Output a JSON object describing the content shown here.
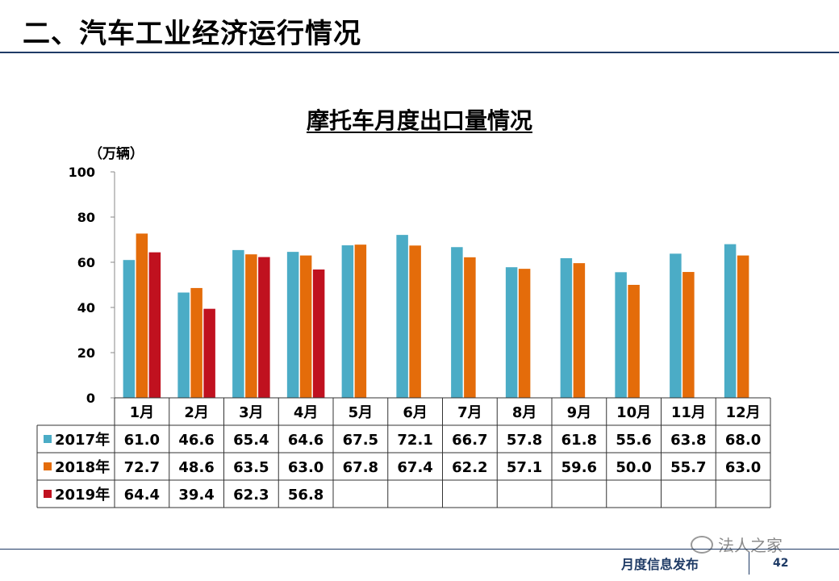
{
  "slide": {
    "title": "二、汽车工业经济运行情况",
    "footer_text": "月度信息发布",
    "page_number": "42",
    "watermark": "法人之家"
  },
  "chart_data": {
    "type": "bar",
    "title": "摩托车月度出口量情况",
    "ylabel": "（万辆）",
    "ylim": [
      0,
      100
    ],
    "yticks": [
      0,
      20,
      40,
      60,
      80,
      100
    ],
    "categories": [
      "1月",
      "2月",
      "3月",
      "4月",
      "5月",
      "6月",
      "7月",
      "8月",
      "9月",
      "10月",
      "11月",
      "12月"
    ],
    "series": [
      {
        "name": "2017年",
        "color": "#4bacc6",
        "values": [
          61.0,
          46.6,
          65.4,
          64.6,
          67.5,
          72.1,
          66.7,
          57.8,
          61.8,
          55.6,
          63.8,
          68.0
        ],
        "labels": [
          "61.0",
          "46.6",
          "65.4",
          "64.6",
          "67.5",
          "72.1",
          "66.7",
          "57.8",
          "61.8",
          "55.6",
          "63.8",
          "68.0"
        ]
      },
      {
        "name": "2018年",
        "color": "#e46c0a",
        "values": [
          72.7,
          48.6,
          63.5,
          63.0,
          67.8,
          67.4,
          62.2,
          57.1,
          59.6,
          50.0,
          55.7,
          63.0
        ],
        "labels": [
          "72.7",
          "48.6",
          "63.5",
          "63.0",
          "67.8",
          "67.4",
          "62.2",
          "57.1",
          "59.6",
          "50.0",
          "55.7",
          "63.0"
        ]
      },
      {
        "name": "2019年",
        "color": "#c0111f",
        "values": [
          64.4,
          39.4,
          62.3,
          56.8,
          null,
          null,
          null,
          null,
          null,
          null,
          null,
          null
        ],
        "labels": [
          "64.4",
          "39.4",
          "62.3",
          "56.8",
          "",
          "",
          "",
          "",
          "",
          "",
          "",
          ""
        ]
      }
    ],
    "legend": "data-table"
  }
}
